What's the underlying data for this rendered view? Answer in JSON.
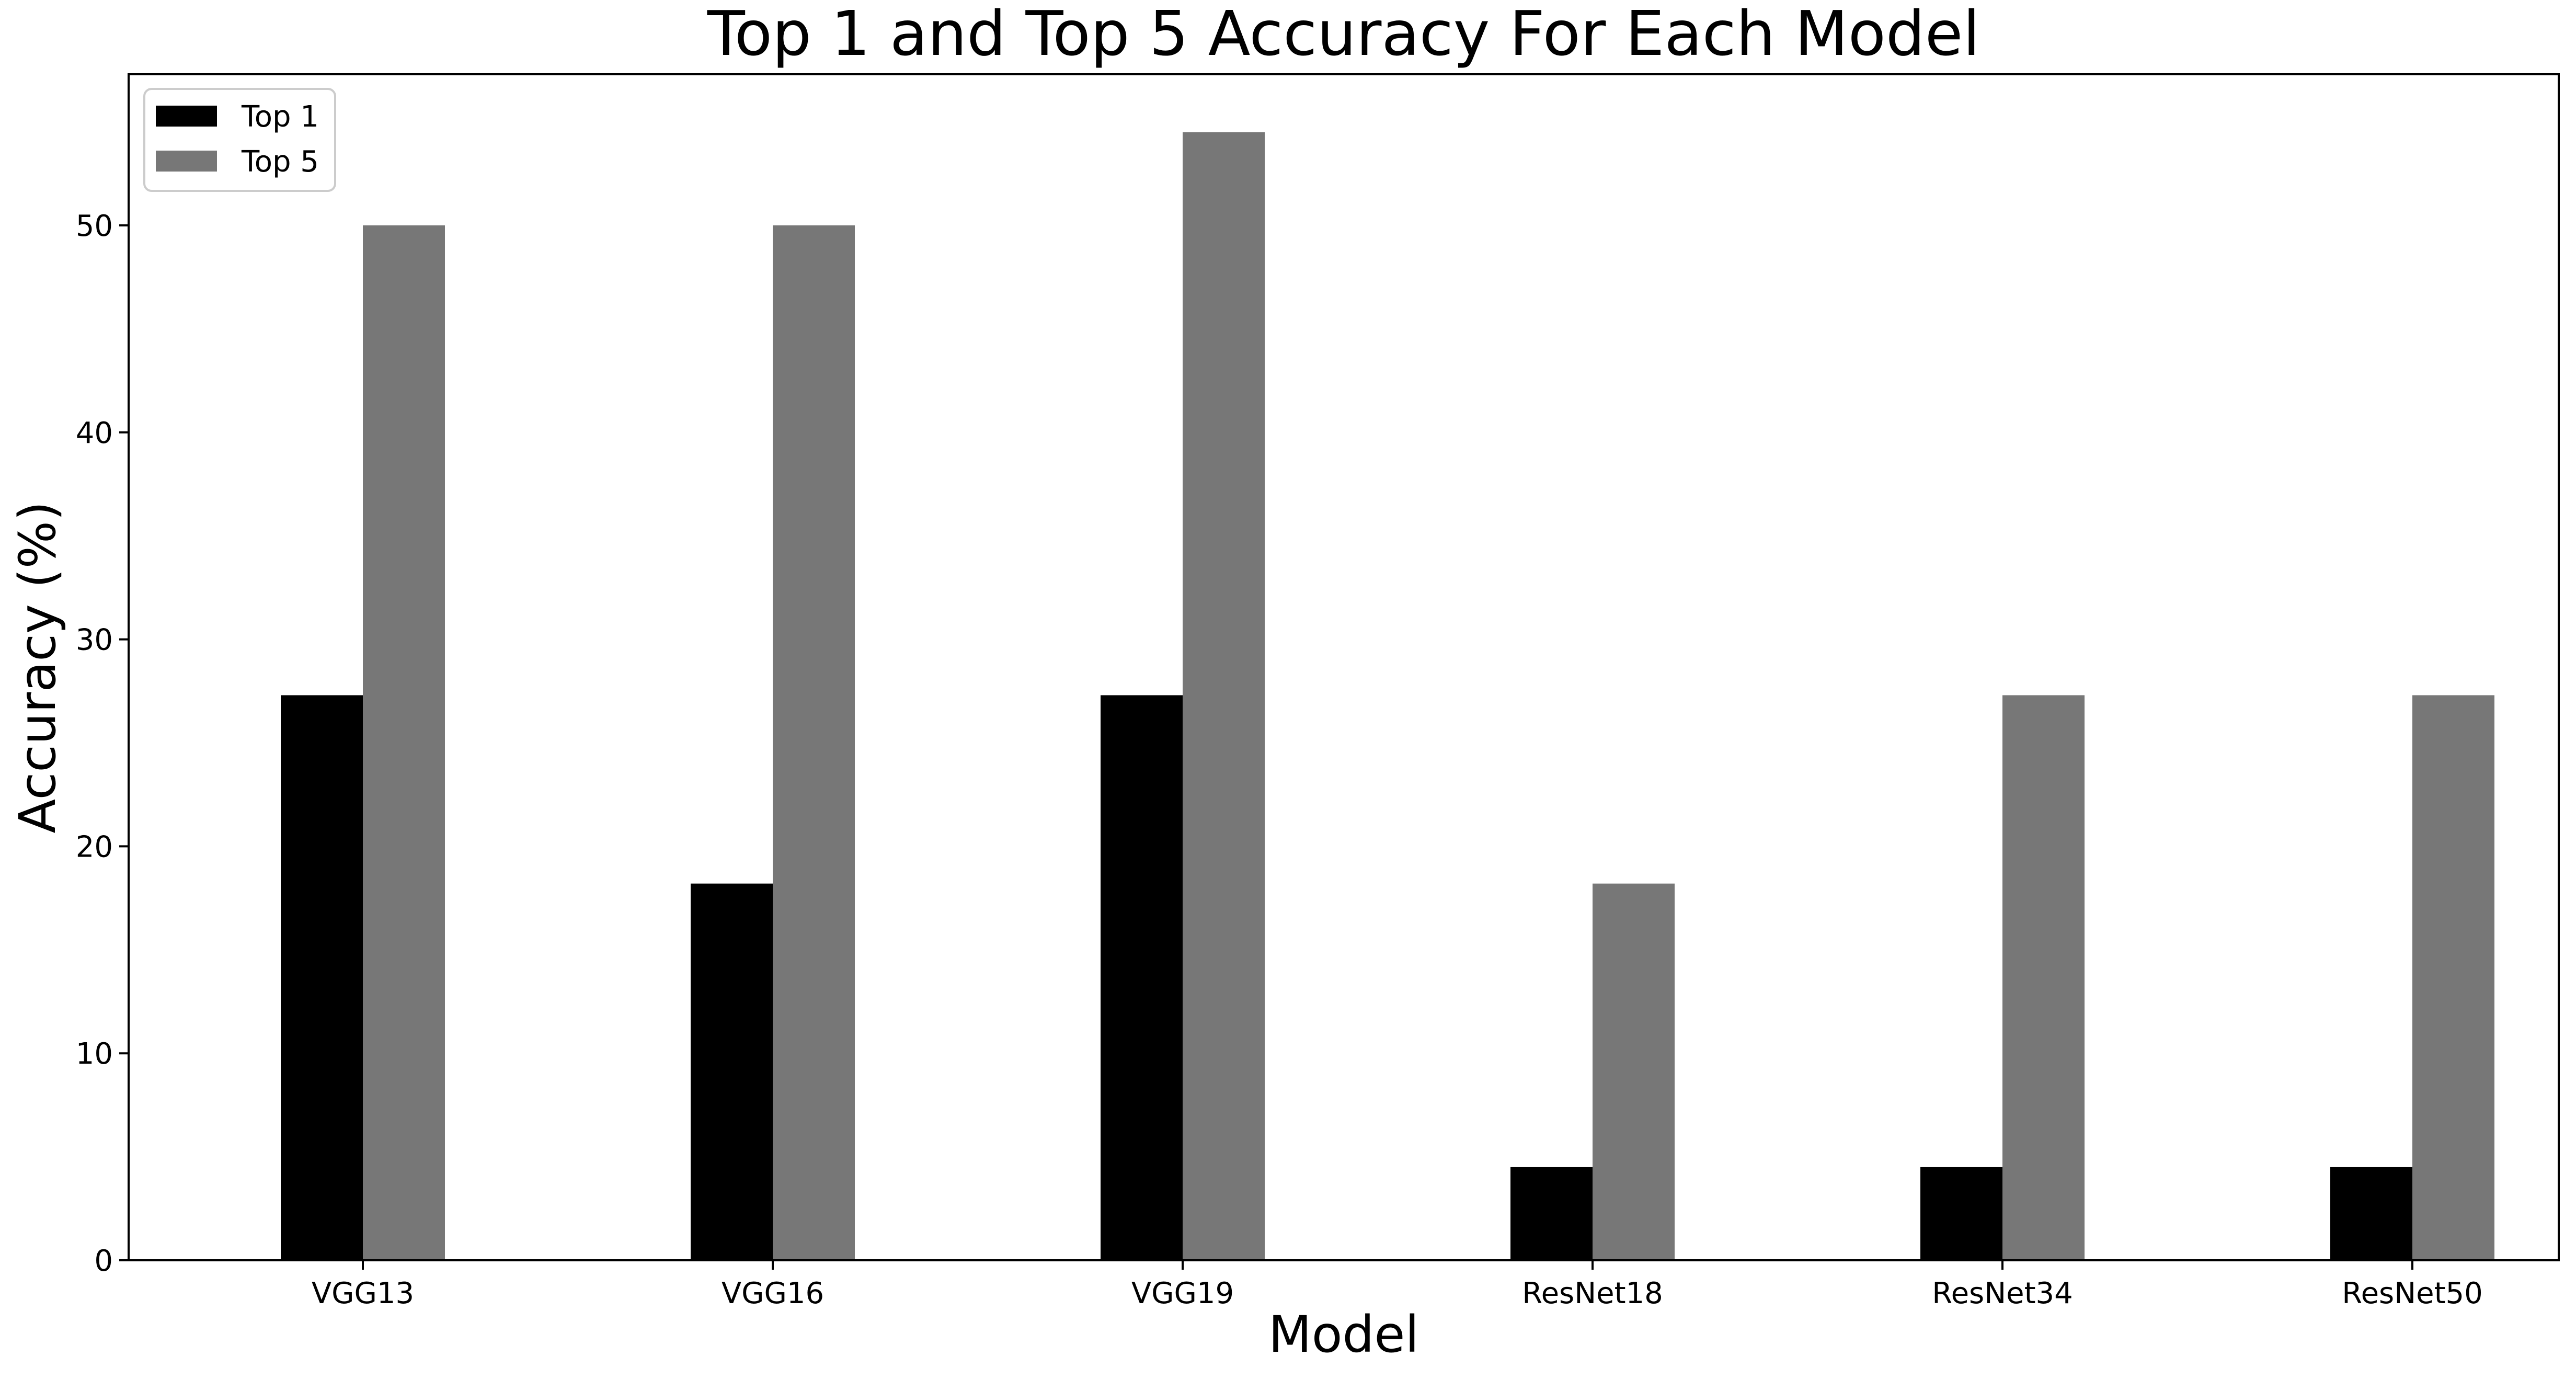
{
  "chart_data": {
    "type": "bar",
    "title": "Top 1 and Top 5 Accuracy For Each Model",
    "xlabel": "Model",
    "ylabel": "Accuracy (%)",
    "categories": [
      "VGG13",
      "VGG16",
      "VGG19",
      "ResNet18",
      "ResNet34",
      "ResNet50"
    ],
    "series": [
      {
        "name": "Top 1",
        "color": "#000000",
        "values": [
          27.3,
          18.2,
          27.3,
          4.5,
          4.5,
          4.5
        ]
      },
      {
        "name": "Top 5",
        "color": "#777777",
        "values": [
          50.0,
          50.0,
          54.5,
          18.2,
          27.3,
          27.3
        ]
      }
    ],
    "ylim": [
      0,
      57.3
    ],
    "yticks": [
      0,
      10,
      20,
      30,
      40,
      50
    ],
    "grid": false,
    "legend": "top-left"
  }
}
